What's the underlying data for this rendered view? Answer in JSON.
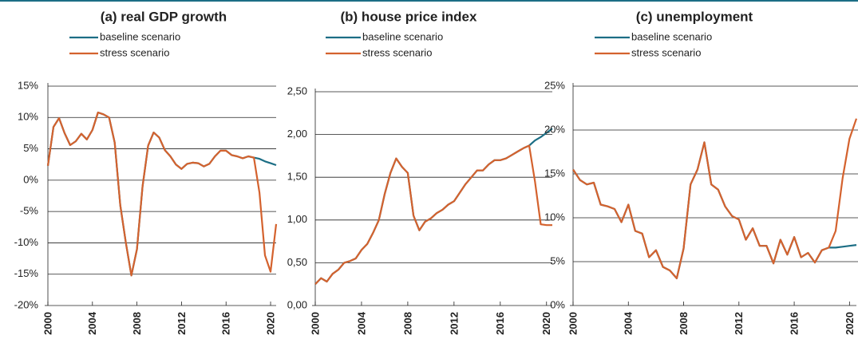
{
  "chart_data": [
    {
      "type": "line",
      "title": "(a) real GDP growth",
      "x": [
        2000,
        2000.5,
        2001,
        2001.5,
        2002,
        2002.5,
        2003,
        2003.5,
        2004,
        2004.5,
        2005,
        2005.5,
        2006,
        2006.5,
        2007,
        2007.5,
        2008,
        2008.5,
        2009,
        2009.5,
        2010,
        2010.5,
        2011,
        2011.5,
        2012,
        2012.5,
        2013,
        2013.5,
        2014,
        2014.5,
        2015,
        2015.5,
        2016,
        2016.5,
        2017,
        2017.5,
        2018,
        2018.5,
        2019,
        2019.5,
        2020,
        2020.5
      ],
      "series": [
        {
          "name": "baseline scenario",
          "color": "#1c6e85",
          "values": [
            2.3,
            8.5,
            9.9,
            7.5,
            5.6,
            6.2,
            7.4,
            6.5,
            8.0,
            10.8,
            10.5,
            10.0,
            6.0,
            -4,
            -10,
            -15.2,
            -11,
            -1,
            5.5,
            7.6,
            6.8,
            4.8,
            3.8,
            2.5,
            1.8,
            2.6,
            2.8,
            2.7,
            2.2,
            2.6,
            3.8,
            4.7,
            4.7,
            4.0,
            3.8,
            3.5,
            3.8,
            3.6,
            3.4,
            3.0,
            2.7,
            2.4
          ]
        },
        {
          "name": "stress scenario",
          "color": "#d4622e",
          "values": [
            2.3,
            8.5,
            9.9,
            7.5,
            5.6,
            6.2,
            7.4,
            6.5,
            8.0,
            10.8,
            10.5,
            10.0,
            6.0,
            -4,
            -10,
            -15.2,
            -11,
            -1,
            5.5,
            7.6,
            6.8,
            4.8,
            3.8,
            2.5,
            1.8,
            2.6,
            2.8,
            2.7,
            2.2,
            2.6,
            3.8,
            4.7,
            4.7,
            4.0,
            3.8,
            3.5,
            3.8,
            3.6,
            -2,
            -12,
            -14.6,
            -7
          ]
        }
      ],
      "xlim": [
        2000,
        2020.5
      ],
      "xticks": [
        2000,
        2004,
        2008,
        2012,
        2016,
        2020
      ],
      "ylim": [
        -20,
        15
      ],
      "yticks": [
        {
          "value": -20,
          "label": "-20%"
        },
        {
          "value": -15,
          "label": "-15%"
        },
        {
          "value": -10,
          "label": "-10%"
        },
        {
          "value": -5,
          "label": "-5%"
        },
        {
          "value": 0,
          "label": "0%"
        },
        {
          "value": 5,
          "label": "5%"
        },
        {
          "value": 10,
          "label": "10%"
        },
        {
          "value": 15,
          "label": "15%"
        }
      ],
      "grid": true
    },
    {
      "type": "line",
      "title": "(b) house price index",
      "x": [
        2000,
        2000.5,
        2001,
        2001.5,
        2002,
        2002.5,
        2003,
        2003.5,
        2004,
        2004.5,
        2005,
        2005.5,
        2006,
        2006.5,
        2007,
        2007.5,
        2008,
        2008.5,
        2009,
        2009.5,
        2010,
        2010.5,
        2011,
        2011.5,
        2012,
        2012.5,
        2013,
        2013.5,
        2014,
        2014.5,
        2015,
        2015.5,
        2016,
        2016.5,
        2017,
        2017.5,
        2018,
        2018.5,
        2019,
        2019.5,
        2020,
        2020.5
      ],
      "series": [
        {
          "name": "baseline scenario",
          "color": "#1c6e85",
          "values": [
            0.25,
            0.32,
            0.28,
            0.37,
            0.42,
            0.5,
            0.52,
            0.55,
            0.65,
            0.72,
            0.85,
            1.0,
            1.3,
            1.55,
            1.72,
            1.62,
            1.55,
            1.05,
            0.88,
            0.98,
            1.02,
            1.08,
            1.12,
            1.18,
            1.22,
            1.32,
            1.42,
            1.5,
            1.58,
            1.58,
            1.65,
            1.7,
            1.7,
            1.72,
            1.76,
            1.8,
            1.84,
            1.87,
            1.93,
            1.97,
            2.02,
            2.07
          ]
        },
        {
          "name": "stress scenario",
          "color": "#d4622e",
          "values": [
            0.25,
            0.32,
            0.28,
            0.37,
            0.42,
            0.5,
            0.52,
            0.55,
            0.65,
            0.72,
            0.85,
            1.0,
            1.3,
            1.55,
            1.72,
            1.62,
            1.55,
            1.05,
            0.88,
            0.98,
            1.02,
            1.08,
            1.12,
            1.18,
            1.22,
            1.32,
            1.42,
            1.5,
            1.58,
            1.58,
            1.65,
            1.7,
            1.7,
            1.72,
            1.76,
            1.8,
            1.84,
            1.87,
            1.45,
            0.95,
            0.94,
            0.94
          ]
        }
      ],
      "xlim": [
        2000,
        2020.5
      ],
      "xticks": [
        2000,
        2004,
        2008,
        2012,
        2016,
        2020
      ],
      "ylim": [
        0,
        2.5
      ],
      "yticks": [
        {
          "value": 0,
          "label": "0,00"
        },
        {
          "value": 0.5,
          "label": "0,50"
        },
        {
          "value": 1,
          "label": "1,00"
        },
        {
          "value": 1.5,
          "label": "1,50"
        },
        {
          "value": 2,
          "label": "2,00"
        },
        {
          "value": 2.5,
          "label": "2,50"
        }
      ],
      "grid": true
    },
    {
      "type": "line",
      "title": "(c) unemployment",
      "x": [
        2000,
        2000.5,
        2001,
        2001.5,
        2002,
        2002.5,
        2003,
        2003.5,
        2004,
        2004.5,
        2005,
        2005.5,
        2006,
        2006.5,
        2007,
        2007.5,
        2008,
        2008.5,
        2009,
        2009.5,
        2010,
        2010.5,
        2011,
        2011.5,
        2012,
        2012.5,
        2013,
        2013.5,
        2014,
        2014.5,
        2015,
        2015.5,
        2016,
        2016.5,
        2017,
        2017.5,
        2018,
        2018.5,
        2019,
        2019.5,
        2020,
        2020.5
      ],
      "series": [
        {
          "name": "baseline scenario",
          "color": "#1c6e85",
          "values": [
            15.5,
            14.3,
            13.8,
            14.0,
            11.5,
            11.3,
            11.0,
            9.5,
            11.5,
            8.5,
            8.2,
            5.5,
            6.3,
            4.4,
            4.0,
            3.1,
            6.5,
            13.8,
            15.5,
            18.6,
            13.8,
            13.2,
            11.3,
            10.2,
            9.8,
            7.5,
            8.8,
            6.8,
            6.8,
            4.8,
            7.5,
            5.8,
            7.8,
            5.5,
            6.0,
            4.9,
            6.3,
            6.6,
            6.6,
            6.7,
            6.8,
            6.9
          ]
        },
        {
          "name": "stress scenario",
          "color": "#d4622e",
          "values": [
            15.5,
            14.3,
            13.8,
            14.0,
            11.5,
            11.3,
            11.0,
            9.5,
            11.5,
            8.5,
            8.2,
            5.5,
            6.3,
            4.4,
            4.0,
            3.1,
            6.5,
            13.8,
            15.5,
            18.6,
            13.8,
            13.2,
            11.3,
            10.2,
            9.8,
            7.5,
            8.8,
            6.8,
            6.8,
            4.8,
            7.5,
            5.8,
            7.8,
            5.5,
            6.0,
            4.9,
            6.3,
            6.6,
            8.5,
            14.5,
            19.0,
            21.3
          ]
        }
      ],
      "xlim": [
        2000,
        2020.5
      ],
      "xticks": [
        2000,
        2004,
        2008,
        2012,
        2016,
        2020
      ],
      "ylim": [
        0,
        25
      ],
      "yticks": [
        {
          "value": 0,
          "label": "0%"
        },
        {
          "value": 5,
          "label": "5%"
        },
        {
          "value": 10,
          "label": "10%"
        },
        {
          "value": 15,
          "label": "15%"
        },
        {
          "value": 20,
          "label": "20%"
        },
        {
          "value": 25,
          "label": "25%"
        }
      ],
      "grid": true
    }
  ]
}
